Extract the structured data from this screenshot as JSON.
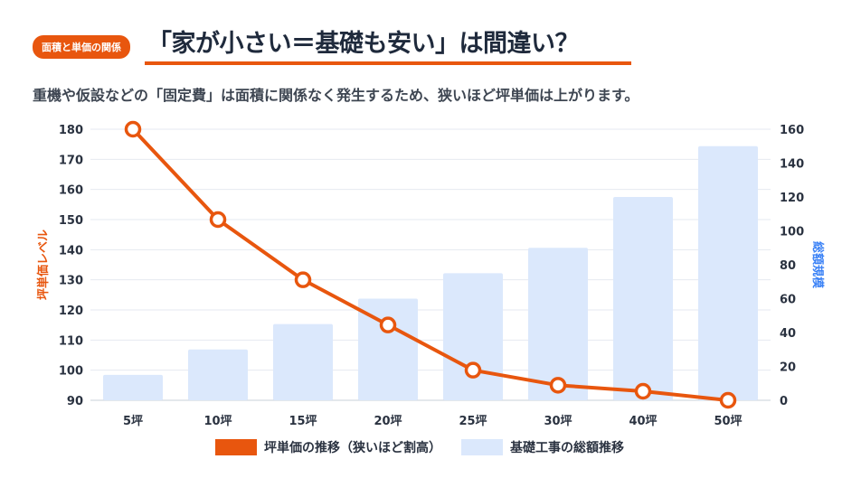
{
  "header": {
    "badge": "面積と単価の関係",
    "title": "「家が小さい＝基礎も安い」は間違い？",
    "subtitle": "重機や仮設などの「固定費」は面積に関係なく発生するため、狭いほど坪単価は上がります。"
  },
  "chart_data": {
    "type": "bar+line",
    "categories": [
      "5坪",
      "10坪",
      "15坪",
      "20坪",
      "25坪",
      "30坪",
      "40坪",
      "50坪"
    ],
    "series": [
      {
        "name": "坪単価の推移（狭いほど割高）",
        "type": "line",
        "axis": "left",
        "color": "#e8560e",
        "values": [
          180,
          150,
          130,
          115,
          100,
          95,
          93,
          90
        ]
      },
      {
        "name": "基礎工事の総額推移",
        "type": "bar",
        "axis": "right",
        "color": "#dbe8fc",
        "values": [
          15,
          30,
          45,
          60,
          75,
          90,
          120,
          150
        ]
      }
    ],
    "ylabel_left": "坪単価レベル",
    "ylabel_right": "総額規模",
    "ylim_left": [
      90,
      180
    ],
    "yticks_left": [
      90,
      100,
      110,
      120,
      130,
      140,
      150,
      160,
      170,
      180
    ],
    "ylim_right": [
      0,
      160
    ],
    "yticks_right": [
      0,
      20,
      40,
      60,
      80,
      100,
      120,
      140,
      160
    ],
    "grid": true,
    "legend": "bottom",
    "colors": {
      "left_axis_label": "#e8560e",
      "right_axis_label": "#3b82f6"
    }
  }
}
